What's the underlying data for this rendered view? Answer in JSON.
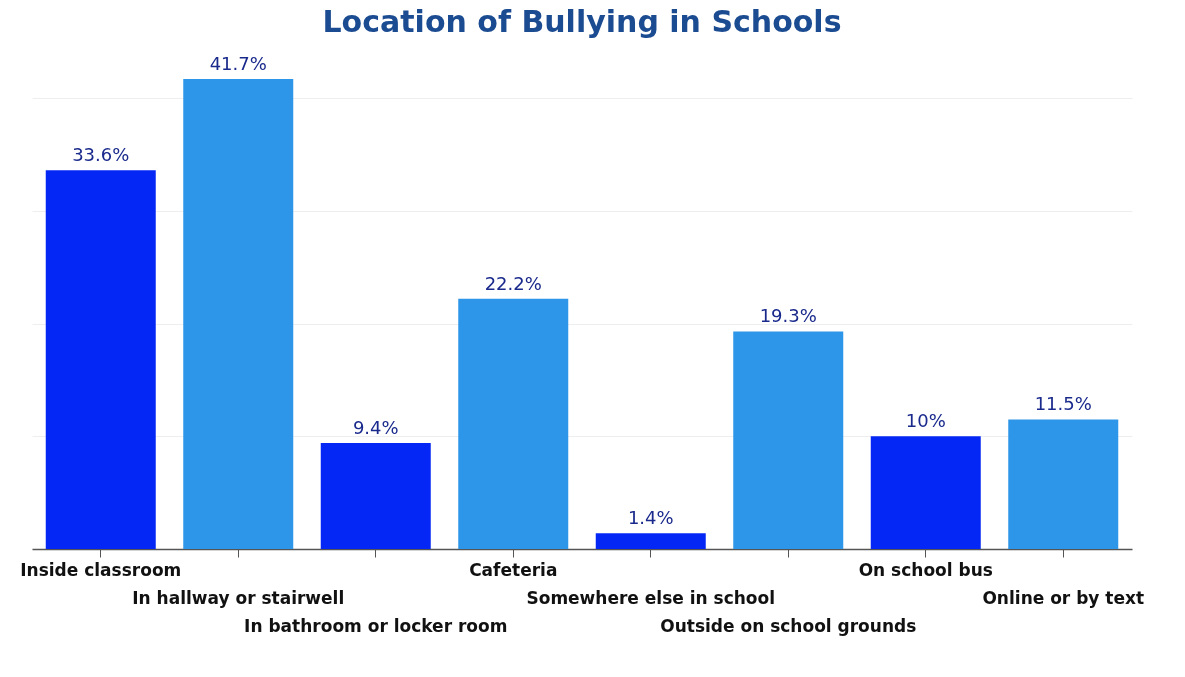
{
  "chart_data": {
    "type": "bar",
    "title": "Location of Bullying in Schools",
    "categories": [
      "Inside classroom",
      "In hallway or stairwell",
      "In bathroom or locker room",
      "Cafeteria",
      "Somewhere else in school",
      "Outside on school grounds",
      "On school bus",
      "Online or by text"
    ],
    "values": [
      33.6,
      41.7,
      9.4,
      22.2,
      1.4,
      19.3,
      10,
      11.5
    ],
    "value_labels": [
      "33.6%",
      "41.7%",
      "9.4%",
      "22.2%",
      "1.4%",
      "19.3%",
      "10%",
      "11.5%"
    ],
    "colors": [
      "#0527f5",
      "#2e96e8",
      "#0527f5",
      "#2e96e8",
      "#0527f5",
      "#2e96e8",
      "#0527f5",
      "#2e96e8"
    ],
    "yticks": [
      {
        "value": 0,
        "label": null
      },
      {
        "value": 10,
        "label": null
      },
      {
        "value": 20,
        "label": null
      },
      {
        "value": 30,
        "label": null
      },
      {
        "value": 40,
        "label": null
      }
    ],
    "grid": "y",
    "tick_labels": "x"
  }
}
